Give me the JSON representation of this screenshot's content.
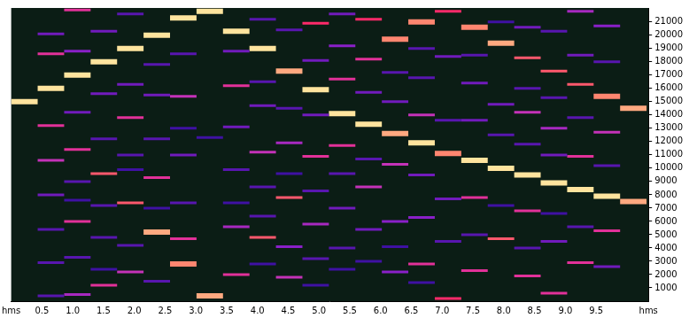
{
  "chart_data": {
    "type": "spectrogram",
    "xlim": [
      0,
      10.35
    ],
    "xticks": [
      {
        "value": 0,
        "label": "hms"
      },
      0.5,
      {
        "value": 1,
        "label": "1.0"
      },
      1.5,
      {
        "value": 2,
        "label": "2.0"
      },
      2.5,
      {
        "value": 3,
        "label": "3.0"
      },
      3.5,
      {
        "value": 4,
        "label": "4.0"
      },
      4.5,
      {
        "value": 5,
        "label": "5.0"
      },
      5.5,
      {
        "value": 6,
        "label": "6.0"
      },
      6.5,
      {
        "value": 7,
        "label": "7.0"
      },
      7.5,
      {
        "value": 8,
        "label": "8.0"
      },
      8.5,
      {
        "value": 9,
        "label": "9.0"
      },
      9.5,
      {
        "value": 10.35,
        "label": "hms"
      }
    ],
    "ylim": [
      0,
      22050
    ],
    "yticks": [
      1000,
      2000,
      3000,
      4000,
      5000,
      6000,
      7000,
      8000,
      9000,
      10000,
      11000,
      12000,
      13000,
      14000,
      15000,
      16000,
      17000,
      18000,
      19000,
      20000,
      21000
    ],
    "zlim": [
      -80,
      0
    ],
    "grid": false,
    "segments": [
      {
        "start": 0,
        "end": 0.43,
        "frequencies": [
          15000
        ],
        "levels": [
          -5
        ]
      },
      {
        "start": 0.43,
        "end": 0.86,
        "frequencies": [
          16000,
          18600,
          13200,
          10600,
          20100,
          8000,
          5400,
          2900,
          400
        ],
        "levels": [
          -5,
          -25,
          -25,
          -30,
          -45,
          -45,
          -50,
          -50,
          -50
        ]
      },
      {
        "start": 0.86,
        "end": 1.29,
        "frequencies": [
          17000,
          21900,
          11400,
          6000,
          18800,
          14200,
          9000,
          3300,
          500,
          7600
        ],
        "levels": [
          -5,
          -25,
          -25,
          -25,
          -40,
          -45,
          -50,
          -50,
          -35,
          -55
        ]
      },
      {
        "start": 1.29,
        "end": 1.72,
        "frequencies": [
          18000,
          9600,
          1200,
          20300,
          15600,
          12200,
          7200,
          4800,
          2400
        ],
        "levels": [
          -5,
          -15,
          -25,
          -45,
          -45,
          -50,
          -50,
          -50,
          -55
        ]
      },
      {
        "start": 1.72,
        "end": 2.15,
        "frequencies": [
          19000,
          7400,
          13800,
          2200,
          16300,
          21600,
          11000,
          4200,
          9900
        ],
        "levels": [
          -5,
          -15,
          -25,
          -30,
          -45,
          -50,
          -50,
          -50,
          -55
        ]
      },
      {
        "start": 2.15,
        "end": 2.58,
        "frequencies": [
          20000,
          5200,
          9300,
          15500,
          17800,
          12200,
          1500,
          7000
        ],
        "levels": [
          -5,
          -8,
          -25,
          -45,
          -50,
          -50,
          -50,
          -55
        ]
      },
      {
        "start": 2.58,
        "end": 3.01,
        "frequencies": [
          21300,
          2800,
          4700,
          15400,
          11000,
          18600,
          7400,
          13000
        ],
        "levels": [
          -5,
          -10,
          -25,
          -30,
          -45,
          -50,
          -50,
          -55
        ]
      },
      {
        "start": 3.01,
        "end": 3.44,
        "frequencies": [
          21800,
          400,
          12300
        ],
        "levels": [
          -5,
          -8,
          -55
        ]
      },
      {
        "start": 3.44,
        "end": 3.87,
        "frequencies": [
          20300,
          16200,
          2000,
          5600,
          18800,
          13100,
          9900,
          7400
        ],
        "levels": [
          -5,
          -25,
          -25,
          -35,
          -45,
          -45,
          -50,
          -55
        ]
      },
      {
        "start": 3.87,
        "end": 4.3,
        "frequencies": [
          19000,
          4800,
          11200,
          14700,
          21200,
          16500,
          8600,
          2800,
          6400
        ],
        "levels": [
          -5,
          -15,
          -30,
          -45,
          -50,
          -50,
          -50,
          -55,
          -50
        ]
      },
      {
        "start": 4.3,
        "end": 4.73,
        "frequencies": [
          17300,
          7800,
          11900,
          1800,
          4100,
          14500,
          20400,
          9600
        ],
        "levels": [
          -8,
          -15,
          -35,
          -30,
          -40,
          -50,
          -50,
          -55
        ]
      },
      {
        "start": 4.73,
        "end": 5.16,
        "frequencies": [
          15900,
          20900,
          10900,
          5800,
          14000,
          18100,
          8300,
          3200,
          1200
        ],
        "levels": [
          -5,
          -20,
          -25,
          -35,
          -45,
          -45,
          -50,
          -50,
          -55
        ]
      },
      {
        "start": 5.16,
        "end": 5.59,
        "frequencies": [
          14100,
          16700,
          11700,
          19200,
          7000,
          9600,
          21600,
          4000,
          2400
        ],
        "levels": [
          -5,
          -25,
          -25,
          -40,
          -45,
          -50,
          -45,
          -50,
          -55
        ]
      },
      {
        "start": 5.59,
        "end": 6.02,
        "frequencies": [
          13300,
          18200,
          21200,
          8600,
          15700,
          5400,
          10700,
          3000
        ],
        "levels": [
          -5,
          -25,
          -20,
          -30,
          -45,
          -45,
          -50,
          -55
        ]
      },
      {
        "start": 6.02,
        "end": 6.45,
        "frequencies": [
          12600,
          19700,
          10300,
          6000,
          15000,
          2200,
          17200,
          4100
        ],
        "levels": [
          -8,
          -10,
          -30,
          -40,
          -45,
          -40,
          -50,
          -55
        ]
      },
      {
        "start": 6.45,
        "end": 6.88,
        "frequencies": [
          11900,
          21000,
          14000,
          2800,
          9500,
          6300,
          16800,
          19000,
          1400
        ],
        "levels": [
          -5,
          -10,
          -30,
          -25,
          -45,
          -40,
          -50,
          -50,
          -55
        ]
      },
      {
        "start": 6.88,
        "end": 7.31,
        "frequencies": [
          11100,
          21800,
          200,
          18400,
          7700,
          13600,
          4500
        ],
        "levels": [
          -10,
          -20,
          -20,
          -45,
          -45,
          -50,
          -50
        ]
      },
      {
        "start": 7.31,
        "end": 7.74,
        "frequencies": [
          10600,
          20600,
          7800,
          2300,
          16400,
          13600,
          5000,
          18500
        ],
        "levels": [
          -5,
          -10,
          -25,
          -25,
          -45,
          -45,
          -50,
          -50
        ]
      },
      {
        "start": 7.74,
        "end": 8.17,
        "frequencies": [
          10000,
          19400,
          4700,
          14800,
          12500,
          7200,
          21000
        ],
        "levels": [
          -5,
          -8,
          -15,
          -45,
          -50,
          -55,
          -55
        ]
      },
      {
        "start": 8.17,
        "end": 8.6,
        "frequencies": [
          9500,
          18300,
          14200,
          6800,
          1900,
          20600,
          11800,
          4000,
          16000
        ],
        "levels": [
          -5,
          -15,
          -30,
          -25,
          -25,
          -45,
          -50,
          -50,
          -50
        ]
      },
      {
        "start": 8.6,
        "end": 9.03,
        "frequencies": [
          8900,
          17300,
          600,
          13000,
          4500,
          11000,
          20300,
          15300,
          6600
        ],
        "levels": [
          -5,
          -15,
          -25,
          -35,
          -45,
          -45,
          -50,
          -50,
          -55
        ]
      },
      {
        "start": 9.03,
        "end": 9.46,
        "frequencies": [
          8400,
          16300,
          10900,
          21800,
          2900,
          5600,
          13800,
          18500
        ],
        "levels": [
          -5,
          -15,
          -25,
          -35,
          -25,
          -50,
          -50,
          -45
        ]
      },
      {
        "start": 9.46,
        "end": 9.89,
        "frequencies": [
          7900,
          15400,
          5300,
          12700,
          2600,
          20700,
          10200,
          18000
        ],
        "levels": [
          -5,
          -10,
          -25,
          -30,
          -45,
          -40,
          -50,
          -50
        ]
      },
      {
        "start": 9.89,
        "end": 10.32,
        "frequencies": [
          14500,
          7500
        ],
        "levels": [
          -8,
          -8
        ]
      }
    ]
  }
}
